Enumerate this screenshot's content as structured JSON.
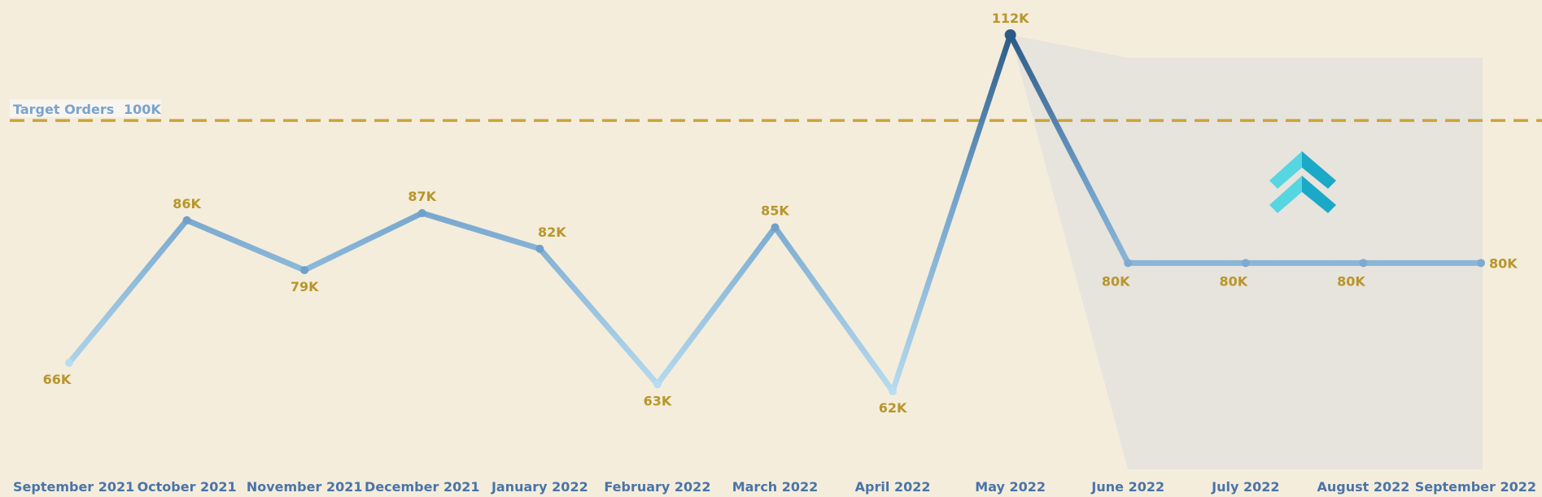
{
  "chart_data": {
    "type": "line",
    "title": "",
    "xlabel": "",
    "ylabel": "",
    "ylim": [
      40,
      120
    ],
    "categories": [
      "September 2021",
      "October 2021",
      "November 2021",
      "December 2021",
      "January 2022",
      "February 2022",
      "March 2022",
      "April 2022",
      "May 2022",
      "June 2022",
      "July 2022",
      "August 2022",
      "September 2022"
    ],
    "series": [
      {
        "values": [
          66,
          86,
          79,
          87,
          82,
          63,
          85,
          62,
          112,
          80,
          80,
          80,
          80
        ]
      }
    ],
    "value_labels": [
      "66K",
      "86K",
      "79K",
      "87K",
      "82K",
      "63K",
      "85K",
      "62K",
      "112K",
      "80K",
      "80K",
      "80K",
      "80K"
    ],
    "target": {
      "label": "Target Orders",
      "value": 100,
      "value_label": "100K"
    },
    "forecast_start": "June 2022",
    "trend_icon": "double-chevron-up-icon",
    "grid": false,
    "legend": "none",
    "colors": {
      "background": "#f4eddc",
      "line_low": "#aad1ea",
      "line_high": "#2c5a86",
      "line_mid": "#6fa0c9",
      "target_line": "#c9a43a",
      "data_label": "#b8962b",
      "tick_label": "#4a74a8",
      "forecast_band": "#e6e3dc",
      "icon_light": "#55d6e0",
      "icon_dark": "#1ba9c8"
    }
  }
}
